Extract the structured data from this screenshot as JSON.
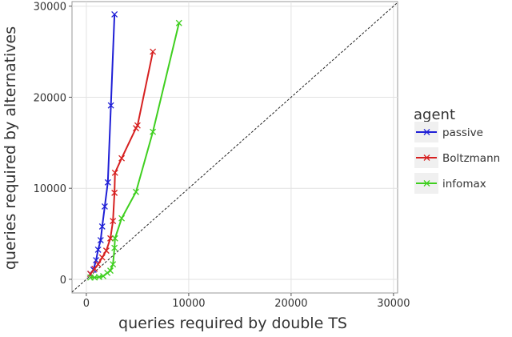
{
  "chart_data": {
    "type": "line",
    "x_label": "queries required by double TS",
    "y_label": "queries required by alternatives",
    "xlim": [
      -1400,
      30400
    ],
    "ylim": [
      -1500,
      30500
    ],
    "xticks": [
      0,
      10000,
      20000,
      30000
    ],
    "yticks": [
      0,
      10000,
      20000,
      30000
    ],
    "grid": true,
    "diagonal": true,
    "legend": {
      "title": "agent",
      "position": "right"
    },
    "series": [
      {
        "name": "passive",
        "color": "#1f1fd6",
        "x": [
          400,
          700,
          950,
          1150,
          1400,
          1550,
          1800,
          2100,
          2400,
          2750
        ],
        "values": [
          600,
          1050,
          2100,
          3250,
          4300,
          5800,
          8000,
          10650,
          19100,
          29100
        ]
      },
      {
        "name": "Boltzmann",
        "color": "#d62020",
        "x": [
          400,
          800,
          1150,
          1550,
          1950,
          2350,
          2600,
          2750,
          2800,
          3450,
          4850,
          5000,
          6500
        ],
        "values": [
          600,
          1150,
          1650,
          2400,
          3150,
          4500,
          6400,
          9500,
          11700,
          13300,
          16600,
          16900,
          25000
        ]
      },
      {
        "name": "infomax",
        "color": "#3fcf1f",
        "x": [
          400,
          800,
          1250,
          1650,
          2050,
          2350,
          2600,
          2750,
          2800,
          3450,
          4850,
          6500,
          9050
        ],
        "values": [
          200,
          200,
          250,
          350,
          700,
          950,
          1650,
          3450,
          4500,
          6700,
          9600,
          16200,
          28150
        ]
      }
    ]
  }
}
